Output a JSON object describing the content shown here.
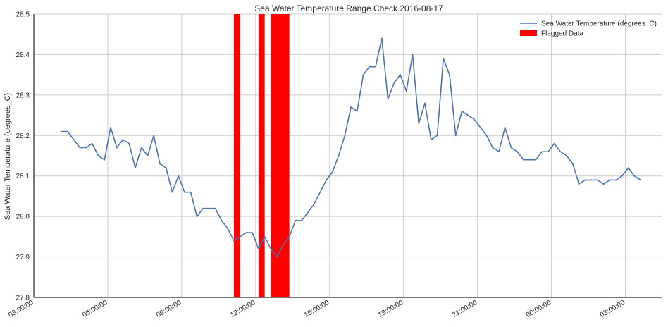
{
  "chart_data": {
    "type": "line",
    "title": "Sea Water Temperature Range Check 2016-08-17",
    "ylabel": "Sea Water Temperature (degrees_C)",
    "xlabel": "",
    "ylim": [
      27.8,
      28.5
    ],
    "xlim": [
      "2016-08-17 03:00:00",
      "2016-08-18 04:30:00"
    ],
    "x_tick_labels": [
      "2016-08-17 03:00:00",
      "2016-08-17 06:00:00",
      "2016-08-17 09:00:00",
      "2016-08-17 12:00:00",
      "2016-08-17 15:00:00",
      "2016-08-17 18:00:00",
      "2016-08-17 21:00:00",
      "2016-08-18 00:00:00",
      "2016-08-18 03:00:00"
    ],
    "x_tick_text": [
      "03:00:00",
      "06:00:00",
      "09:00:00",
      "12:00:00",
      "15:00:00",
      "18:00:00",
      "21:00:00",
      "00:00:00",
      "03:00:00"
    ],
    "y_ticks": [
      27.8,
      27.9,
      28.0,
      28.1,
      28.2,
      28.3,
      28.4,
      28.5
    ],
    "y_tick_text": [
      "27.8",
      "27.9",
      "28.0",
      "28.1",
      "28.2",
      "28.3",
      "28.4",
      "28.5"
    ],
    "grid": true,
    "legend_position": "top-right",
    "legend": [
      {
        "label": "Sea Water Temperature (degrees_C)",
        "kind": "line",
        "color": "#4c72b0"
      },
      {
        "label": "Flagged Data",
        "kind": "patch",
        "color": "#ff0000"
      }
    ],
    "series": [
      {
        "name": "Sea Water Temperature (degrees_C)",
        "color": "#4c72b0",
        "points": [
          [
            "2016-08-17 04:07:00",
            28.21
          ],
          [
            "2016-08-17 04:22:00",
            28.21
          ],
          [
            "2016-08-17 04:37:00",
            28.19
          ],
          [
            "2016-08-17 04:52:00",
            28.17
          ],
          [
            "2016-08-17 05:07:00",
            28.17
          ],
          [
            "2016-08-17 05:22:00",
            28.18
          ],
          [
            "2016-08-17 05:37:00",
            28.15
          ],
          [
            "2016-08-17 05:52:00",
            28.14
          ],
          [
            "2016-08-17 06:07:00",
            28.22
          ],
          [
            "2016-08-17 06:22:00",
            28.17
          ],
          [
            "2016-08-17 06:37:00",
            28.19
          ],
          [
            "2016-08-17 06:52:00",
            28.18
          ],
          [
            "2016-08-17 07:07:00",
            28.12
          ],
          [
            "2016-08-17 07:22:00",
            28.17
          ],
          [
            "2016-08-17 07:37:00",
            28.15
          ],
          [
            "2016-08-17 07:52:00",
            28.2
          ],
          [
            "2016-08-17 08:07:00",
            28.13
          ],
          [
            "2016-08-17 08:22:00",
            28.12
          ],
          [
            "2016-08-17 08:37:00",
            28.06
          ],
          [
            "2016-08-17 08:52:00",
            28.1
          ],
          [
            "2016-08-17 09:07:00",
            28.06
          ],
          [
            "2016-08-17 09:22:00",
            28.06
          ],
          [
            "2016-08-17 09:37:00",
            28.0
          ],
          [
            "2016-08-17 09:52:00",
            28.02
          ],
          [
            "2016-08-17 10:07:00",
            28.02
          ],
          [
            "2016-08-17 10:22:00",
            28.02
          ],
          [
            "2016-08-17 10:37:00",
            27.99
          ],
          [
            "2016-08-17 10:52:00",
            27.97
          ],
          [
            "2016-08-17 11:07:00",
            27.94
          ],
          [
            "2016-08-17 11:22:00",
            27.95
          ],
          [
            "2016-08-17 11:37:00",
            27.96
          ],
          [
            "2016-08-17 11:52:00",
            27.96
          ],
          [
            "2016-08-17 12:07:00",
            27.92
          ],
          [
            "2016-08-17 12:22:00",
            27.95
          ],
          [
            "2016-08-17 12:37:00",
            27.92
          ],
          [
            "2016-08-17 12:52:00",
            27.9
          ],
          [
            "2016-08-17 13:07:00",
            27.93
          ],
          [
            "2016-08-17 13:22:00",
            27.95
          ],
          [
            "2016-08-17 13:37:00",
            27.99
          ],
          [
            "2016-08-17 13:52:00",
            27.99
          ],
          [
            "2016-08-17 14:07:00",
            28.01
          ],
          [
            "2016-08-17 14:22:00",
            28.03
          ],
          [
            "2016-08-17 14:37:00",
            28.06
          ],
          [
            "2016-08-17 14:52:00",
            28.09
          ],
          [
            "2016-08-17 15:07:00",
            28.11
          ],
          [
            "2016-08-17 15:22:00",
            28.15
          ],
          [
            "2016-08-17 15:37:00",
            28.2
          ],
          [
            "2016-08-17 15:52:00",
            28.27
          ],
          [
            "2016-08-17 16:07:00",
            28.26
          ],
          [
            "2016-08-17 16:22:00",
            28.35
          ],
          [
            "2016-08-17 16:37:00",
            28.37
          ],
          [
            "2016-08-17 16:52:00",
            28.37
          ],
          [
            "2016-08-17 17:07:00",
            28.44
          ],
          [
            "2016-08-17 17:22:00",
            28.29
          ],
          [
            "2016-08-17 17:37:00",
            28.33
          ],
          [
            "2016-08-17 17:52:00",
            28.35
          ],
          [
            "2016-08-17 18:07:00",
            28.31
          ],
          [
            "2016-08-17 18:22:00",
            28.4
          ],
          [
            "2016-08-17 18:37:00",
            28.23
          ],
          [
            "2016-08-17 18:52:00",
            28.28
          ],
          [
            "2016-08-17 19:07:00",
            28.19
          ],
          [
            "2016-08-17 19:22:00",
            28.2
          ],
          [
            "2016-08-17 19:37:00",
            28.39
          ],
          [
            "2016-08-17 19:52:00",
            28.35
          ],
          [
            "2016-08-17 20:07:00",
            28.2
          ],
          [
            "2016-08-17 20:22:00",
            28.26
          ],
          [
            "2016-08-17 20:37:00",
            28.25
          ],
          [
            "2016-08-17 20:52:00",
            28.24
          ],
          [
            "2016-08-17 21:07:00",
            28.22
          ],
          [
            "2016-08-17 21:22:00",
            28.2
          ],
          [
            "2016-08-17 21:37:00",
            28.17
          ],
          [
            "2016-08-17 21:52:00",
            28.16
          ],
          [
            "2016-08-17 22:07:00",
            28.22
          ],
          [
            "2016-08-17 22:22:00",
            28.17
          ],
          [
            "2016-08-17 22:37:00",
            28.16
          ],
          [
            "2016-08-17 22:52:00",
            28.14
          ],
          [
            "2016-08-17 23:07:00",
            28.14
          ],
          [
            "2016-08-17 23:22:00",
            28.14
          ],
          [
            "2016-08-17 23:37:00",
            28.16
          ],
          [
            "2016-08-17 23:52:00",
            28.16
          ],
          [
            "2016-08-18 00:07:00",
            28.18
          ],
          [
            "2016-08-18 00:22:00",
            28.16
          ],
          [
            "2016-08-18 00:37:00",
            28.15
          ],
          [
            "2016-08-18 00:52:00",
            28.13
          ],
          [
            "2016-08-18 01:07:00",
            28.08
          ],
          [
            "2016-08-18 01:22:00",
            28.09
          ],
          [
            "2016-08-18 01:37:00",
            28.09
          ],
          [
            "2016-08-18 01:52:00",
            28.09
          ],
          [
            "2016-08-18 02:07:00",
            28.08
          ],
          [
            "2016-08-18 02:22:00",
            28.09
          ],
          [
            "2016-08-18 02:37:00",
            28.09
          ],
          [
            "2016-08-18 02:52:00",
            28.1
          ],
          [
            "2016-08-18 03:07:00",
            28.12
          ],
          [
            "2016-08-18 03:22:00",
            28.1
          ],
          [
            "2016-08-18 03:37:00",
            28.09
          ]
        ]
      }
    ],
    "flagged_ranges": [
      {
        "start": "2016-08-17 11:07:00",
        "end": "2016-08-17 11:22:00",
        "color": "#ff0000"
      },
      {
        "start": "2016-08-17 12:07:00",
        "end": "2016-08-17 12:22:00",
        "color": "#ff0000"
      },
      {
        "start": "2016-08-17 12:37:00",
        "end": "2016-08-17 13:22:00",
        "color": "#ff0000"
      }
    ]
  }
}
